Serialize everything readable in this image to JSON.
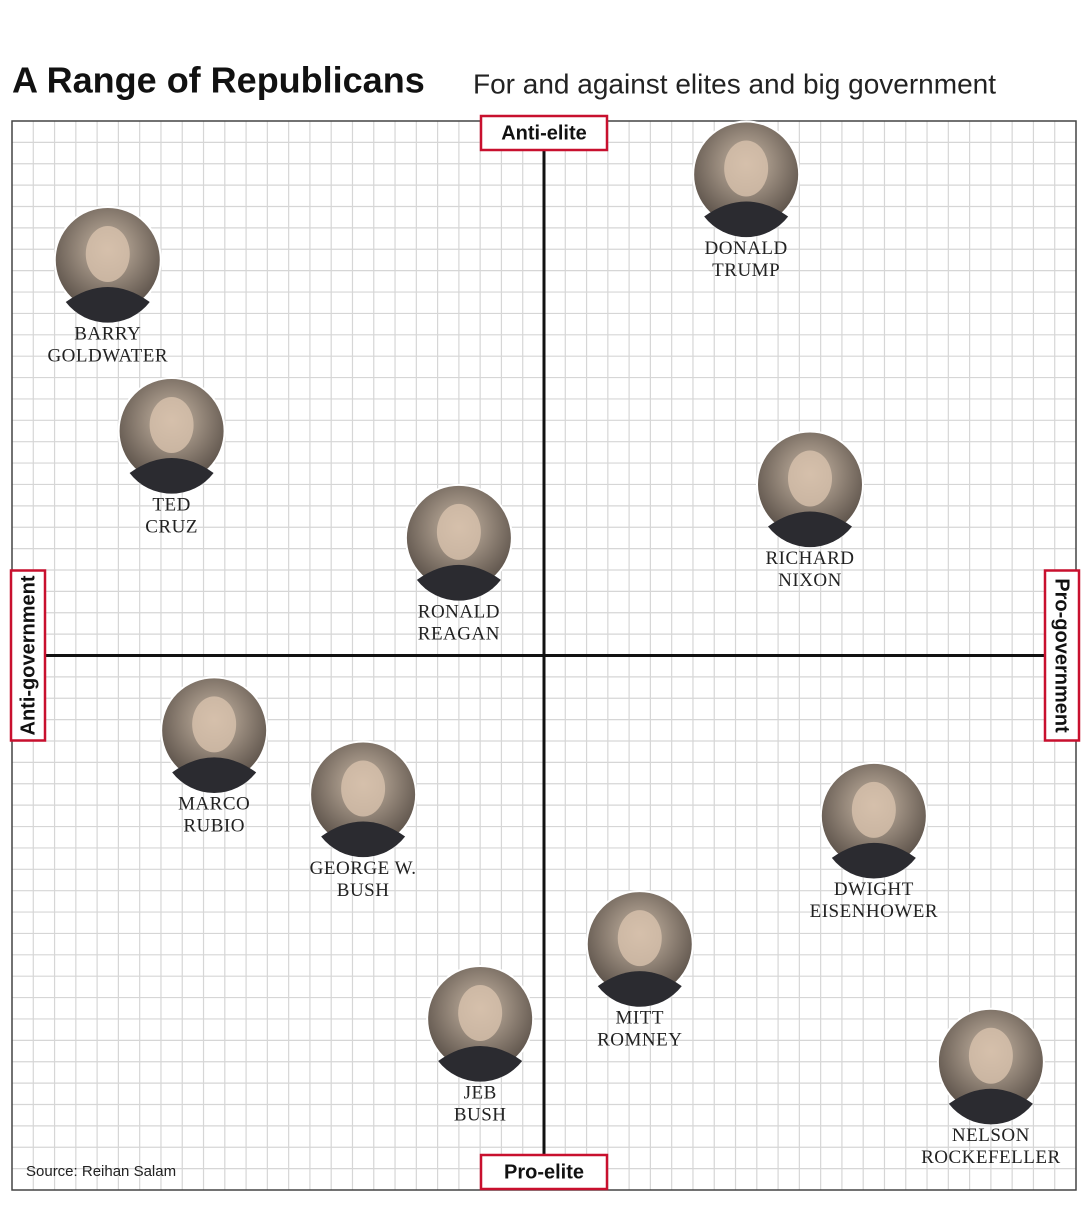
{
  "chart_data": {
    "type": "scatter",
    "title": "A Range of Republicans",
    "subtitle": "For and against elites and big government",
    "axis_labels": {
      "top": "Anti-elite",
      "bottom": "Pro-elite",
      "left": "Anti-government",
      "right": "Pro-government"
    },
    "source": "Source: Reihan Salam",
    "xlim": [
      -25,
      25
    ],
    "ylim": [
      -25,
      25
    ],
    "grid": true,
    "labels": [
      [
        "DONALD",
        "TRUMP"
      ],
      [
        "BARRY",
        "GOLDWATER"
      ],
      [
        "TED",
        "CRUZ"
      ],
      [
        "RONALD",
        "REAGAN"
      ],
      [
        "RICHARD",
        "NIXON"
      ],
      [
        "MARCO",
        "RUBIO"
      ],
      [
        "GEORGE W.",
        "BUSH"
      ],
      [
        "DWIGHT",
        "EISENHOWER"
      ],
      [
        "MITT",
        "ROMNEY"
      ],
      [
        "JEB",
        "BUSH"
      ],
      [
        "NELSON",
        "ROCKEFELLER"
      ]
    ],
    "x": [
      9.5,
      -20.5,
      -17.5,
      -4,
      12.5,
      -15.5,
      -8.5,
      15.5,
      4.5,
      -3,
      21
    ],
    "y": [
      22.5,
      18.5,
      10.5,
      5.5,
      8,
      -3.5,
      -6.5,
      -7.5,
      -13.5,
      -17,
      -19
    ]
  }
}
